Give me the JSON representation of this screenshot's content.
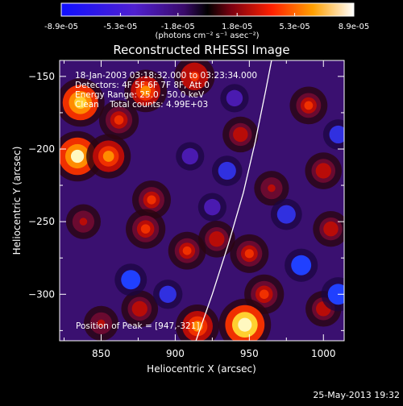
{
  "chart_data": {
    "type": "heatmap",
    "title": "Reconstructed RHESSI Image",
    "xlabel": "Heliocentric X (arcsec)",
    "ylabel": "Heliocentric Y (arcsec)",
    "xlim": [
      822,
      1014
    ],
    "ylim": [
      -332,
      -139
    ],
    "x_ticks": [
      850,
      900,
      950,
      1000
    ],
    "y_ticks": [
      -150,
      -200,
      -250,
      -300
    ],
    "colorbar": {
      "unit_label": "(photons cm⁻² s⁻¹ asec⁻²)",
      "range": [
        -8.9e-05,
        8.9e-05
      ],
      "ticks": [
        "-8.9e-05",
        "-5.3e-05",
        "-1.8e-05",
        "1.8e-05",
        "5.3e-05",
        "8.9e-05"
      ],
      "tick_values": [
        -8.9e-05,
        -5.3e-05,
        -1.8e-05,
        1.8e-05,
        5.3e-05,
        8.9e-05
      ]
    },
    "annotations": [
      "18-Jan-2003 03:18:32.000 to 03:23:34.000",
      "Detectors: 4F 5F 6F 7F 8F, Att 0",
      "Energy Range: 25.0 - 50.0 keV",
      "Clean    Total counts: 4.99E+03"
    ],
    "peak_label": "Position of Peak = [947,-321]",
    "peak_position": [
      947,
      -321
    ],
    "limb_points": [
      [
        914,
        -332
      ],
      [
        925,
        -300
      ],
      [
        936,
        -265
      ],
      [
        946,
        -230
      ],
      [
        954,
        -195
      ],
      [
        961,
        -160
      ],
      [
        965,
        -139
      ]
    ],
    "blobs": [
      {
        "x": 836,
        "y": -168,
        "v": 1.0
      },
      {
        "x": 834,
        "y": -205,
        "v": 1.1
      },
      {
        "x": 855,
        "y": -205,
        "v": 0.8
      },
      {
        "x": 862,
        "y": -180,
        "v": 0.55
      },
      {
        "x": 880,
        "y": -160,
        "v": 0.7
      },
      {
        "x": 913,
        "y": -150,
        "v": 0.6
      },
      {
        "x": 884,
        "y": -235,
        "v": 0.5
      },
      {
        "x": 880,
        "y": -255,
        "v": 0.55
      },
      {
        "x": 908,
        "y": -270,
        "v": 0.45
      },
      {
        "x": 928,
        "y": -262,
        "v": 0.4
      },
      {
        "x": 944,
        "y": -190,
        "v": 0.35
      },
      {
        "x": 950,
        "y": -272,
        "v": 0.5
      },
      {
        "x": 960,
        "y": -300,
        "v": 0.55
      },
      {
        "x": 990,
        "y": -170,
        "v": 0.45
      },
      {
        "x": 1000,
        "y": -215,
        "v": 0.4
      },
      {
        "x": 965,
        "y": -227,
        "v": 0.3
      },
      {
        "x": 1005,
        "y": -255,
        "v": 0.35
      },
      {
        "x": 915,
        "y": -322,
        "v": 0.75
      },
      {
        "x": 947,
        "y": -321,
        "v": 1.2
      },
      {
        "x": 876,
        "y": -310,
        "v": 0.4
      },
      {
        "x": 838,
        "y": -250,
        "v": 0.3
      },
      {
        "x": 1000,
        "y": -310,
        "v": 0.35
      },
      {
        "x": 850,
        "y": -320,
        "v": 0.3
      },
      {
        "x": 910,
        "y": -205,
        "v": -0.3
      },
      {
        "x": 935,
        "y": -215,
        "v": -0.4
      },
      {
        "x": 985,
        "y": -280,
        "v": -0.55
      },
      {
        "x": 1010,
        "y": -300,
        "v": -0.6
      },
      {
        "x": 975,
        "y": -245,
        "v": -0.45
      },
      {
        "x": 870,
        "y": -290,
        "v": -0.5
      },
      {
        "x": 1010,
        "y": -190,
        "v": -0.4
      },
      {
        "x": 940,
        "y": -165,
        "v": -0.3
      },
      {
        "x": 895,
        "y": -300,
        "v": -0.35
      },
      {
        "x": 925,
        "y": -240,
        "v": -0.3
      }
    ]
  },
  "footer": {
    "date": "25-May-2013 19:32"
  }
}
